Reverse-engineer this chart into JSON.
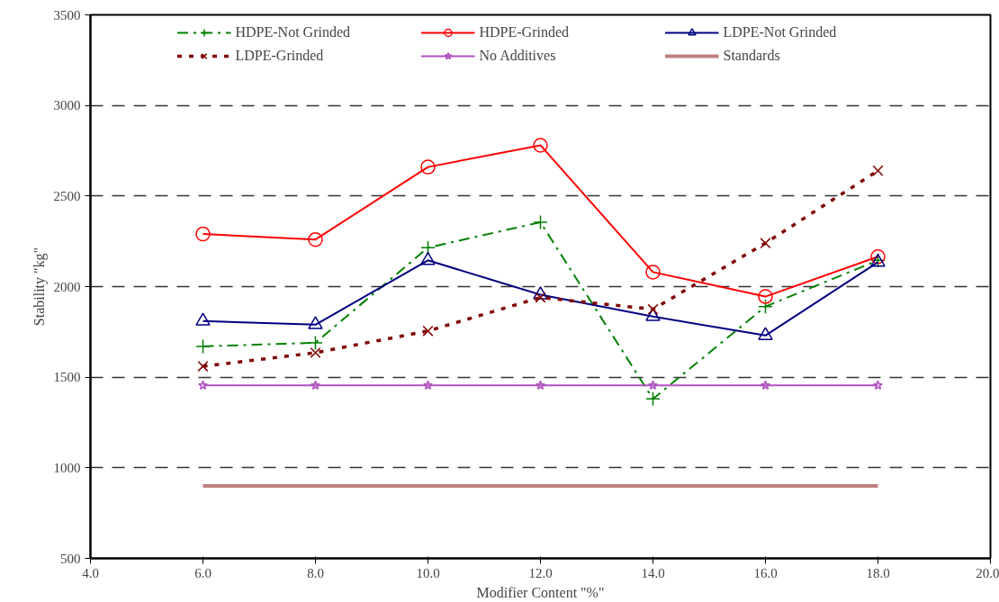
{
  "chart_data": {
    "type": "line",
    "xlabel": "Modifier Content \"%\"",
    "ylabel": "Stability \"kg\"",
    "x": [
      6,
      8,
      10,
      12,
      14,
      16,
      18
    ],
    "xlim": [
      4,
      20
    ],
    "xticks": [
      {
        "value": 4,
        "label": "4.0"
      },
      {
        "value": 6,
        "label": "6.0"
      },
      {
        "value": 8,
        "label": "8.0"
      },
      {
        "value": 10,
        "label": "10.0"
      },
      {
        "value": 12,
        "label": "12.0"
      },
      {
        "value": 14,
        "label": "14.0"
      },
      {
        "value": 16,
        "label": "16.0"
      },
      {
        "value": 18,
        "label": "18.0"
      },
      {
        "value": 20,
        "label": "20.0"
      }
    ],
    "ylim": [
      500,
      3500
    ],
    "yticks": [
      500,
      1000,
      1500,
      2000,
      2500,
      3000,
      3500
    ],
    "grid": "y",
    "legend": "top",
    "series": [
      {
        "name": "HDPE-Not Grinded",
        "color": "#008000",
        "marker": "cross",
        "line_style": "dashed",
        "values": [
          1670,
          1690,
          2215,
          2355,
          1380,
          1890,
          2145
        ]
      },
      {
        "name": "HDPE-Grinded",
        "color": "#ff0000",
        "marker": "circle",
        "line_style": "solid",
        "values": [
          2290,
          2260,
          2660,
          2780,
          2080,
          1945,
          2165
        ]
      },
      {
        "name": "LDPE-Not Grinded",
        "color": "#000080",
        "marker": "triangle",
        "line_style": "solid",
        "values": [
          1810,
          1790,
          2145,
          1955,
          1835,
          1730,
          2135
        ]
      },
      {
        "name": "LDPE-Grinded",
        "color": "#800000",
        "marker": "x",
        "line_style": "dotted",
        "values": [
          1560,
          1635,
          1755,
          1940,
          1875,
          2240,
          2640
        ]
      },
      {
        "name": "No Additives",
        "color": "#b050c0",
        "marker": "star",
        "line_style": "solid",
        "values": [
          1455,
          1455,
          1455,
          1455,
          1455,
          1455,
          1455
        ]
      },
      {
        "name": "Standards",
        "color": "#c08080",
        "marker": "none",
        "line_style": "solid",
        "values": [
          900,
          900,
          900,
          900,
          900,
          900,
          900
        ]
      }
    ]
  }
}
